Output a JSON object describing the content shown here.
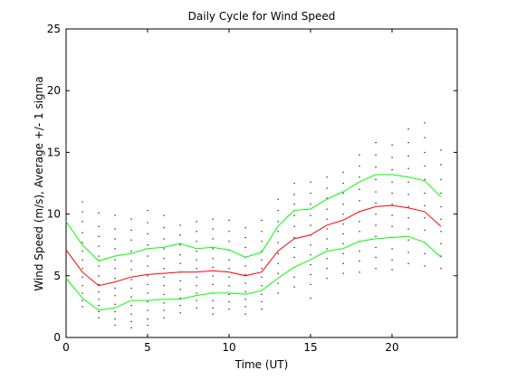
{
  "chart_data": {
    "type": "line",
    "title": "Daily Cycle for Wind Speed",
    "xlabel": "Time (UT)",
    "ylabel": "Wind Speed (m/s), Average +/- 1 sigma",
    "xlim": [
      0,
      24
    ],
    "ylim": [
      0,
      25
    ],
    "xticks": [
      0,
      5,
      10,
      15,
      20
    ],
    "yticks": [
      0,
      5,
      10,
      15,
      20,
      25
    ],
    "grid": false,
    "x": [
      0,
      1,
      2,
      3,
      4,
      5,
      6,
      7,
      8,
      9,
      10,
      11,
      12,
      13,
      14,
      15,
      16,
      17,
      18,
      19,
      20,
      21,
      22,
      23
    ],
    "series": [
      {
        "role": "plus-1-sigma",
        "color": "#00ff00",
        "values": [
          9.4,
          7.5,
          6.2,
          6.6,
          6.8,
          7.2,
          7.3,
          7.6,
          7.2,
          7.3,
          7.1,
          6.5,
          6.9,
          9.0,
          10.3,
          10.4,
          11.2,
          11.8,
          12.6,
          13.2,
          13.2,
          13.0,
          12.7,
          11.4
        ]
      },
      {
        "role": "average",
        "color": "#ff0000",
        "values": [
          7.1,
          5.3,
          4.2,
          4.5,
          4.9,
          5.1,
          5.2,
          5.3,
          5.3,
          5.4,
          5.3,
          5.0,
          5.3,
          7.0,
          8.0,
          8.3,
          9.1,
          9.5,
          10.2,
          10.6,
          10.7,
          10.5,
          10.2,
          9.0
        ]
      },
      {
        "role": "minus-1-sigma",
        "color": "#00ff00",
        "values": [
          4.8,
          3.2,
          2.2,
          2.4,
          3.0,
          3.0,
          3.1,
          3.1,
          3.4,
          3.6,
          3.6,
          3.5,
          3.8,
          4.8,
          5.7,
          6.3,
          7.0,
          7.2,
          7.8,
          8.0,
          8.1,
          8.2,
          7.7,
          6.5
        ]
      }
    ],
    "observations": {
      "type": "scatter",
      "color": "#000000",
      "points": [
        [
          1,
          11.0
        ],
        [
          1,
          10.2
        ],
        [
          1,
          9.4
        ],
        [
          1,
          8.5
        ],
        [
          1,
          7.7
        ],
        [
          1,
          7.0
        ],
        [
          1,
          6.3
        ],
        [
          1,
          5.6
        ],
        [
          1,
          4.9
        ],
        [
          1,
          4.2
        ],
        [
          1,
          3.6
        ],
        [
          1,
          3.0
        ],
        [
          1,
          2.5
        ],
        [
          2,
          10.1
        ],
        [
          2,
          9.0
        ],
        [
          2,
          8.2
        ],
        [
          2,
          7.4
        ],
        [
          2,
          6.6
        ],
        [
          2,
          5.8
        ],
        [
          2,
          5.0
        ],
        [
          2,
          4.3
        ],
        [
          2,
          3.7
        ],
        [
          2,
          3.1
        ],
        [
          2,
          2.6
        ],
        [
          2,
          2.1
        ],
        [
          2,
          1.6
        ],
        [
          3,
          9.9
        ],
        [
          3,
          8.8
        ],
        [
          3,
          8.0
        ],
        [
          3,
          7.2
        ],
        [
          3,
          6.3
        ],
        [
          3,
          5.6
        ],
        [
          3,
          4.8
        ],
        [
          3,
          4.0
        ],
        [
          3,
          3.4
        ],
        [
          3,
          2.7
        ],
        [
          3,
          2.1
        ],
        [
          3,
          1.5
        ],
        [
          3,
          1.0
        ],
        [
          4,
          9.6
        ],
        [
          4,
          8.7
        ],
        [
          4,
          7.9
        ],
        [
          4,
          7.0
        ],
        [
          4,
          6.2
        ],
        [
          4,
          5.5
        ],
        [
          4,
          4.7
        ],
        [
          4,
          4.0
        ],
        [
          4,
          3.3
        ],
        [
          4,
          2.6
        ],
        [
          4,
          1.9
        ],
        [
          4,
          1.3
        ],
        [
          4,
          0.8
        ],
        [
          5,
          10.3
        ],
        [
          5,
          9.3
        ],
        [
          5,
          8.4
        ],
        [
          5,
          7.5
        ],
        [
          5,
          6.6
        ],
        [
          5,
          5.8
        ],
        [
          5,
          5.0
        ],
        [
          5,
          4.3
        ],
        [
          5,
          3.6
        ],
        [
          5,
          2.9
        ],
        [
          5,
          2.2
        ],
        [
          5,
          1.5
        ],
        [
          5,
          1.0
        ],
        [
          6,
          9.9
        ],
        [
          6,
          8.9
        ],
        [
          6,
          8.0
        ],
        [
          6,
          7.2
        ],
        [
          6,
          6.4
        ],
        [
          6,
          5.6
        ],
        [
          6,
          4.9
        ],
        [
          6,
          4.2
        ],
        [
          6,
          3.5
        ],
        [
          6,
          2.8
        ],
        [
          6,
          2.2
        ],
        [
          6,
          1.6
        ],
        [
          7,
          9.1
        ],
        [
          7,
          8.3
        ],
        [
          7,
          7.5
        ],
        [
          7,
          6.7
        ],
        [
          7,
          6.0
        ],
        [
          7,
          5.3
        ],
        [
          7,
          4.6
        ],
        [
          7,
          3.9
        ],
        [
          7,
          3.2
        ],
        [
          7,
          2.6
        ],
        [
          7,
          2.0
        ],
        [
          8,
          9.4
        ],
        [
          8,
          8.6
        ],
        [
          8,
          7.8
        ],
        [
          8,
          7.0
        ],
        [
          8,
          6.3
        ],
        [
          8,
          5.6
        ],
        [
          8,
          4.9
        ],
        [
          8,
          4.2
        ],
        [
          8,
          3.6
        ],
        [
          8,
          3.0
        ],
        [
          8,
          2.4
        ],
        [
          9,
          9.6
        ],
        [
          9,
          8.8
        ],
        [
          9,
          8.0
        ],
        [
          9,
          7.2
        ],
        [
          9,
          6.4
        ],
        [
          9,
          5.7
        ],
        [
          9,
          5.0
        ],
        [
          9,
          4.3
        ],
        [
          9,
          3.6
        ],
        [
          9,
          3.0
        ],
        [
          9,
          2.4
        ],
        [
          9,
          1.9
        ],
        [
          10,
          9.5
        ],
        [
          10,
          8.6
        ],
        [
          10,
          7.8
        ],
        [
          10,
          7.1
        ],
        [
          10,
          6.3
        ],
        [
          10,
          5.6
        ],
        [
          10,
          4.9
        ],
        [
          10,
          4.2
        ],
        [
          10,
          3.5
        ],
        [
          10,
          2.9
        ],
        [
          10,
          2.3
        ],
        [
          11,
          8.9
        ],
        [
          11,
          8.1
        ],
        [
          11,
          7.3
        ],
        [
          11,
          6.5
        ],
        [
          11,
          5.8
        ],
        [
          11,
          5.1
        ],
        [
          11,
          4.4
        ],
        [
          11,
          3.7
        ],
        [
          11,
          3.1
        ],
        [
          11,
          2.5
        ],
        [
          11,
          1.9
        ],
        [
          12,
          9.5
        ],
        [
          12,
          8.6
        ],
        [
          12,
          7.8
        ],
        [
          12,
          7.0
        ],
        [
          12,
          6.3
        ],
        [
          12,
          5.6
        ],
        [
          12,
          4.9
        ],
        [
          12,
          4.2
        ],
        [
          12,
          3.5
        ],
        [
          12,
          2.9
        ],
        [
          12,
          2.3
        ],
        [
          13,
          11.2
        ],
        [
          13,
          10.3
        ],
        [
          13,
          9.4
        ],
        [
          13,
          8.6
        ],
        [
          13,
          7.7
        ],
        [
          13,
          6.8
        ],
        [
          13,
          6.0
        ],
        [
          13,
          5.2
        ],
        [
          13,
          4.4
        ],
        [
          13,
          3.6
        ],
        [
          14,
          12.5
        ],
        [
          14,
          11.6
        ],
        [
          14,
          10.8
        ],
        [
          14,
          9.9
        ],
        [
          14,
          9.0
        ],
        [
          14,
          8.1
        ],
        [
          14,
          7.3
        ],
        [
          14,
          6.5
        ],
        [
          14,
          5.7
        ],
        [
          14,
          4.9
        ],
        [
          14,
          4.1
        ],
        [
          15,
          12.6
        ],
        [
          15,
          11.7
        ],
        [
          15,
          10.8
        ],
        [
          15,
          9.9
        ],
        [
          15,
          9.1
        ],
        [
          15,
          8.3
        ],
        [
          15,
          7.5
        ],
        [
          15,
          6.7
        ],
        [
          15,
          5.9
        ],
        [
          15,
          5.1
        ],
        [
          15,
          4.3
        ],
        [
          15,
          3.2
        ],
        [
          16,
          13.0
        ],
        [
          16,
          12.1
        ],
        [
          16,
          11.3
        ],
        [
          16,
          10.4
        ],
        [
          16,
          9.6
        ],
        [
          16,
          8.8
        ],
        [
          16,
          8.0
        ],
        [
          16,
          7.2
        ],
        [
          16,
          6.4
        ],
        [
          16,
          5.6
        ],
        [
          16,
          4.8
        ],
        [
          17,
          13.4
        ],
        [
          17,
          12.5
        ],
        [
          17,
          11.7
        ],
        [
          17,
          10.8
        ],
        [
          17,
          10.0
        ],
        [
          17,
          9.2
        ],
        [
          17,
          8.4
        ],
        [
          17,
          7.6
        ],
        [
          17,
          6.8
        ],
        [
          17,
          6.0
        ],
        [
          17,
          5.2
        ],
        [
          18,
          14.8
        ],
        [
          18,
          13.9
        ],
        [
          18,
          13.0
        ],
        [
          18,
          12.0
        ],
        [
          18,
          11.1
        ],
        [
          18,
          10.2
        ],
        [
          18,
          9.4
        ],
        [
          18,
          8.6
        ],
        [
          18,
          7.8
        ],
        [
          18,
          7.0
        ],
        [
          18,
          6.2
        ],
        [
          18,
          5.3
        ],
        [
          19,
          15.8
        ],
        [
          19,
          14.8
        ],
        [
          19,
          13.8
        ],
        [
          19,
          12.8
        ],
        [
          19,
          11.8
        ],
        [
          19,
          10.9
        ],
        [
          19,
          10.0
        ],
        [
          19,
          9.1
        ],
        [
          19,
          8.2
        ],
        [
          19,
          7.3
        ],
        [
          19,
          6.5
        ],
        [
          19,
          5.6
        ],
        [
          20,
          15.6
        ],
        [
          20,
          14.6
        ],
        [
          20,
          13.6
        ],
        [
          20,
          12.6
        ],
        [
          20,
          11.7
        ],
        [
          20,
          10.8
        ],
        [
          20,
          9.9
        ],
        [
          20,
          9.0
        ],
        [
          20,
          8.1
        ],
        [
          20,
          7.2
        ],
        [
          20,
          6.3
        ],
        [
          20,
          5.5
        ],
        [
          21,
          16.9
        ],
        [
          21,
          15.8
        ],
        [
          21,
          14.7
        ],
        [
          21,
          13.7
        ],
        [
          21,
          12.6
        ],
        [
          21,
          11.6
        ],
        [
          21,
          10.6
        ],
        [
          21,
          9.7
        ],
        [
          21,
          8.8
        ],
        [
          21,
          7.9
        ],
        [
          21,
          6.9
        ],
        [
          21,
          6.0
        ],
        [
          22,
          17.4
        ],
        [
          22,
          16.2
        ],
        [
          22,
          15.0
        ],
        [
          22,
          13.9
        ],
        [
          22,
          12.8
        ],
        [
          22,
          11.7
        ],
        [
          22,
          10.7
        ],
        [
          22,
          9.7
        ],
        [
          22,
          8.7
        ],
        [
          22,
          7.7
        ],
        [
          22,
          6.8
        ],
        [
          22,
          5.8
        ],
        [
          23,
          15.2
        ],
        [
          23,
          14.0
        ],
        [
          23,
          12.8
        ],
        [
          23,
          11.7
        ],
        [
          23,
          10.6
        ],
        [
          23,
          9.6
        ],
        [
          23,
          8.6
        ],
        [
          23,
          7.6
        ],
        [
          23,
          6.6
        ],
        [
          23,
          5.6
        ]
      ]
    }
  }
}
